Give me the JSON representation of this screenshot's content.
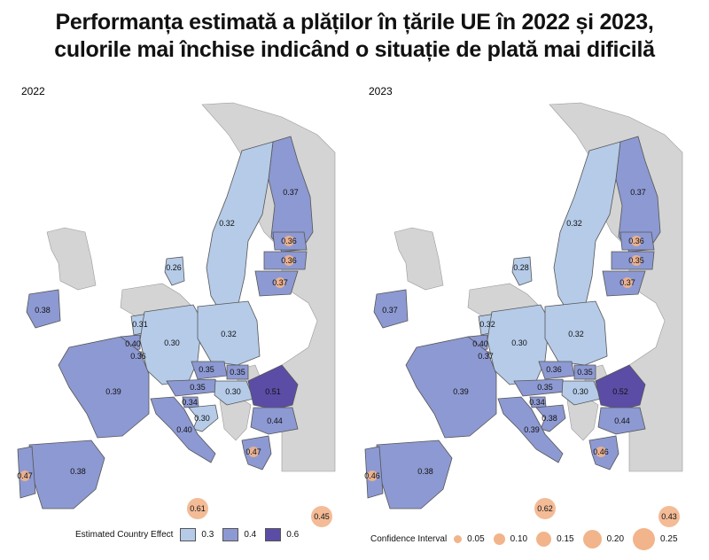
{
  "title": {
    "line1": "Performanța estimată a plăților în țările UE în 2022 și 2023,",
    "line2": "culorile mai închise indicând o situație de plată mai dificilă"
  },
  "colors": {
    "sea": "#ffffff",
    "non_eu": "#d4d4d4",
    "light": "#b5cbe8",
    "mid": "#8d99d2",
    "dark": "#5b4da6",
    "bubble": "#f2b48b",
    "border": "#555555"
  },
  "panels": [
    {
      "year": "2022",
      "labels": {
        "finland": "0.37",
        "sweden": "0.32",
        "estonia": "0.36",
        "latvia": "0.36",
        "lithuania": "0.37",
        "denmark": "0.26",
        "ireland": "0.38",
        "netherlands": "0.31",
        "belgium": "0.40",
        "luxembourg": "0.36",
        "germany": "0.30",
        "poland": "0.32",
        "czechia": "0.35",
        "slovakia": "0.35",
        "austria": "0.35",
        "hungary": "0.30",
        "slovenia": "0.34",
        "croatia": "0.30",
        "romania": "0.51",
        "bulgaria": "0.44",
        "greece": "0.47",
        "france": "0.39",
        "italy": "0.40",
        "spain": "0.38",
        "portugal": "0.47",
        "malta": "0.61",
        "cyprus": "0.45"
      }
    },
    {
      "year": "2023",
      "labels": {
        "finland": "0.37",
        "sweden": "0.32",
        "estonia": "0.36",
        "latvia": "0.35",
        "lithuania": "0.37",
        "denmark": "0.28",
        "ireland": "0.37",
        "netherlands": "0.32",
        "belgium": "0.40",
        "luxembourg": "0.37",
        "germany": "0.30",
        "poland": "0.32",
        "czechia": "0.36",
        "slovakia": "0.35",
        "austria": "0.35",
        "hungary": "0.30",
        "slovenia": "0.34",
        "croatia": "0.38",
        "romania": "0.52",
        "bulgaria": "0.44",
        "greece": "0.46",
        "france": "0.39",
        "italy": "0.39",
        "spain": "0.38",
        "portugal": "0.46",
        "malta": "0.62",
        "cyprus": "0.43"
      }
    }
  ],
  "legend_effect": {
    "title": "Estimated Country Effect",
    "items": [
      "0.3",
      "0.4",
      "0.6"
    ]
  },
  "legend_ci": {
    "title": "Confidence Interval",
    "items": [
      "0.05",
      "0.10",
      "0.15",
      "0.20",
      "0.25"
    ]
  }
}
